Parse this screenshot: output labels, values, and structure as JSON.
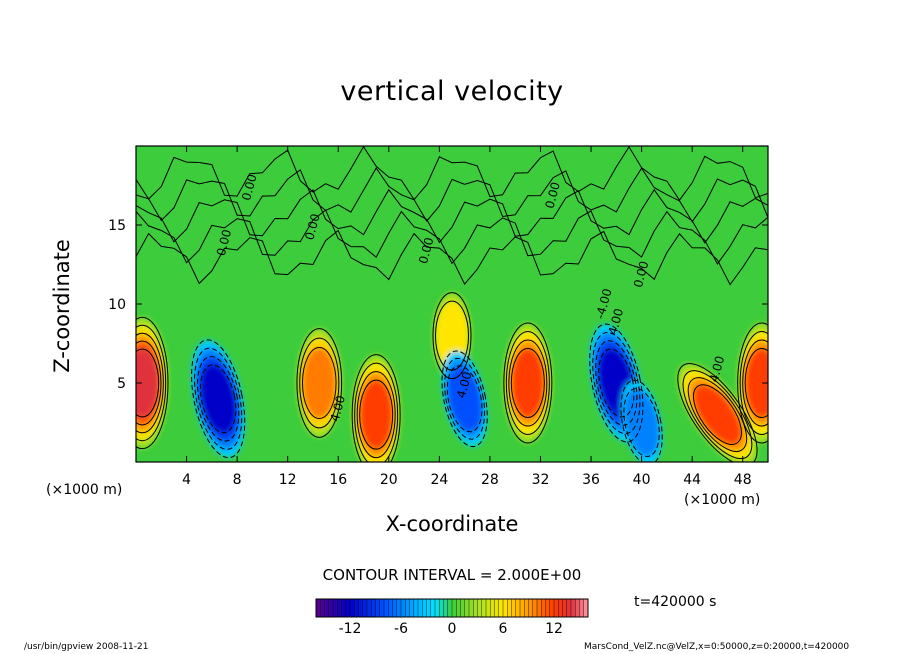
{
  "chart_data": {
    "type": "heatmap",
    "title": "vertical velocity",
    "xlabel": "X-coordinate",
    "ylabel": "Z-coordinate",
    "x_unit_label": "(×1000 m)",
    "xlim": [
      0,
      50
    ],
    "ylim": [
      0,
      20
    ],
    "x_ticks": [
      4,
      8,
      12,
      16,
      20,
      24,
      28,
      32,
      36,
      40,
      44,
      48
    ],
    "y_ticks": [
      5,
      10,
      15
    ],
    "contour_interval_label": "CONTOUR INTERVAL = 2.000E+00",
    "contour_labels": [
      "0.00",
      "0.00",
      "0.00",
      "0.00",
      "0.00",
      "0.00",
      "4.00",
      "4.00",
      "4.00",
      "4.00",
      "-4.00"
    ],
    "colorbar": {
      "range": [
        -16,
        16
      ],
      "ticks": [
        -12,
        -6,
        0,
        6,
        12
      ]
    },
    "time_label": "t=420000 s",
    "features": [
      {
        "x": 0.5,
        "z": 5,
        "value": 14
      },
      {
        "x": 6.5,
        "z": 4,
        "value": -12
      },
      {
        "x": 14.5,
        "z": 5,
        "value": 10
      },
      {
        "x": 19,
        "z": 3,
        "value": 12
      },
      {
        "x": 25,
        "z": 8,
        "value": 6
      },
      {
        "x": 26,
        "z": 4,
        "value": -8
      },
      {
        "x": 31,
        "z": 5,
        "value": 12
      },
      {
        "x": 38,
        "z": 5,
        "value": -12
      },
      {
        "x": 40,
        "z": 2.5,
        "value": -6
      },
      {
        "x": 46,
        "z": 3,
        "value": 12
      },
      {
        "x": 49.5,
        "z": 5,
        "value": 12
      }
    ]
  },
  "footer": {
    "left": "/usr/bin/gpview  2008-11-21",
    "right": "MarsCond_VelZ.nc@VelZ,x=0:50000,z=0:20000,t=420000"
  }
}
